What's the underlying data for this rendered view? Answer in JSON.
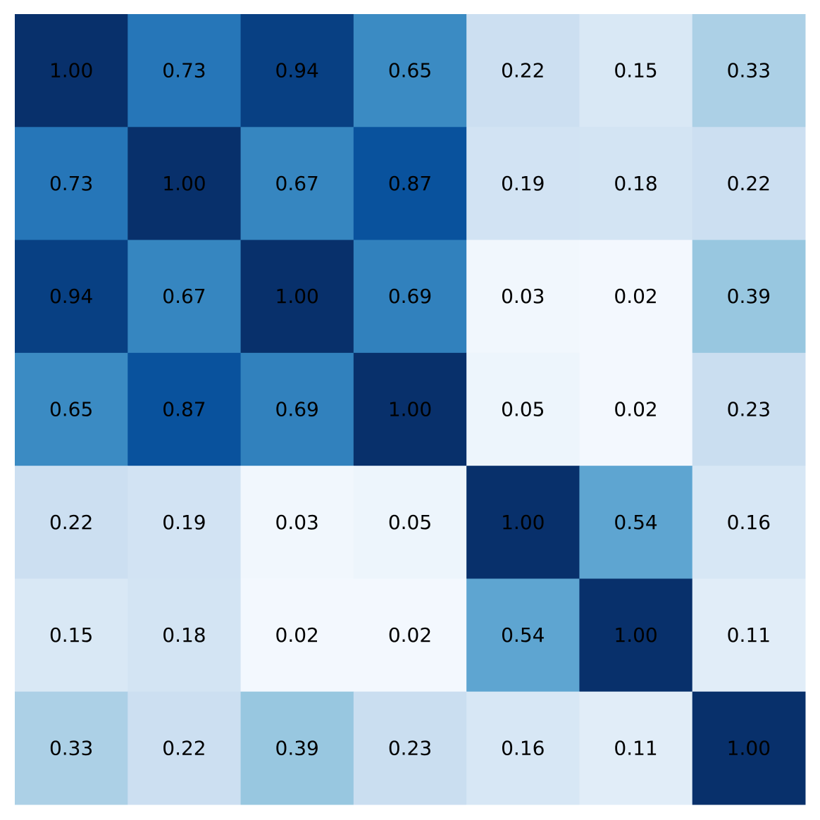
{
  "chart_data": {
    "type": "heatmap",
    "colormap": "Blues",
    "value_range": [
      0,
      1
    ],
    "grid": false,
    "values": [
      [
        1.0,
        0.73,
        0.94,
        0.65,
        0.22,
        0.15,
        0.33
      ],
      [
        0.73,
        1.0,
        0.67,
        0.87,
        0.19,
        0.18,
        0.22
      ],
      [
        0.94,
        0.67,
        1.0,
        0.69,
        0.03,
        0.02,
        0.39
      ],
      [
        0.65,
        0.87,
        0.69,
        1.0,
        0.05,
        0.02,
        0.23
      ],
      [
        0.22,
        0.19,
        0.03,
        0.05,
        1.0,
        0.54,
        0.16
      ],
      [
        0.15,
        0.18,
        0.02,
        0.02,
        0.54,
        1.0,
        0.11
      ],
      [
        0.33,
        0.22,
        0.39,
        0.23,
        0.16,
        0.11,
        1.0
      ]
    ],
    "labels": [
      [
        "1.00",
        "0.73",
        "0.94",
        "0.65",
        "0.22",
        "0.15",
        "0.33"
      ],
      [
        "0.73",
        "1.00",
        "0.67",
        "0.87",
        "0.19",
        "0.18",
        "0.22"
      ],
      [
        "0.94",
        "0.67",
        "1.00",
        "0.69",
        "0.03",
        "0.02",
        "0.39"
      ],
      [
        "0.65",
        "0.87",
        "0.69",
        "1.00",
        "0.05",
        "0.02",
        "0.23"
      ],
      [
        "0.22",
        "0.19",
        "0.03",
        "0.05",
        "1.00",
        "0.54",
        "0.16"
      ],
      [
        "0.15",
        "0.18",
        "0.02",
        "0.02",
        "0.54",
        "1.00",
        "0.11"
      ],
      [
        "0.33",
        "0.22",
        "0.39",
        "0.23",
        "0.16",
        "0.11",
        "1.00"
      ]
    ]
  }
}
